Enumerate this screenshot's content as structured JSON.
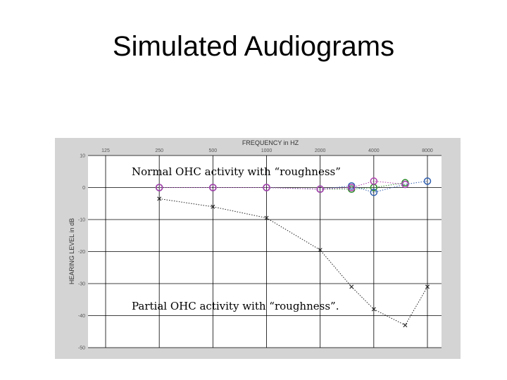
{
  "slide": {
    "title": "Simulated Audiograms"
  },
  "chart_data": {
    "type": "line",
    "title": "FREQUENCY in HZ",
    "xlabel": "FREQUENCY in HZ",
    "ylabel": "HEARING LEVEL in dB",
    "x_scale": "log",
    "x_tick_labels": [
      "125",
      "250",
      "500",
      "1000",
      "2000",
      "4000",
      "8000"
    ],
    "x_ticks": [
      125,
      250,
      500,
      1000,
      2000,
      4000,
      8000
    ],
    "y_tick_labels": [
      "10",
      "0",
      "-10",
      "-20",
      "-30",
      "-40",
      "-50"
    ],
    "y_ticks": [
      10,
      0,
      -10,
      -20,
      -30,
      -40,
      -50
    ],
    "ylim": [
      -50,
      10
    ],
    "grid": true,
    "series": [
      {
        "marker": "circle",
        "color": "#2a8a2a",
        "x": [
          250,
          500,
          1000,
          2000,
          3000,
          4000,
          6000
        ],
        "y": [
          0,
          0,
          0,
          -0.5,
          -0.5,
          0,
          1.5
        ]
      },
      {
        "marker": "circle",
        "color": "#2f5fb0",
        "x": [
          250,
          500,
          1000,
          2000,
          3000,
          4000,
          6000,
          8000
        ],
        "y": [
          0,
          0,
          0,
          -0.5,
          0.5,
          -1.5,
          1,
          2
        ]
      },
      {
        "marker": "circle",
        "color": "#b040b0",
        "x": [
          250,
          500,
          1000,
          2000,
          3000,
          4000,
          6000
        ],
        "y": [
          0,
          0,
          0,
          -0.5,
          0,
          2,
          1
        ]
      },
      {
        "marker": "x",
        "color": "#222222",
        "x": [
          250,
          500,
          1000,
          2000,
          3000,
          4000,
          6000,
          8000
        ],
        "y": [
          -3.5,
          -6,
          -9.5,
          -19.5,
          -31,
          -38,
          -43,
          -31
        ]
      }
    ],
    "annotations": [
      {
        "text": "Normal OHC activity with “roughness”",
        "x": 250,
        "y": 5
      },
      {
        "text": "Partial OHC activity  with “roughness”.",
        "x": 250,
        "y": -37
      }
    ]
  }
}
